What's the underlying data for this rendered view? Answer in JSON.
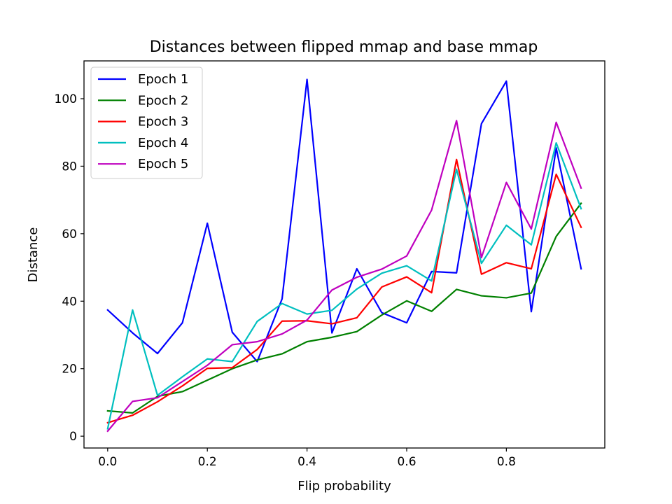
{
  "chart_data": {
    "type": "line",
    "title": "Distances between flipped mmap and base mmap",
    "xlabel": "Flip probability",
    "ylabel": "Distance",
    "xlim": [
      -0.0475,
      0.9975
    ],
    "ylim": [
      -3.5,
      111.2
    ],
    "x_ticks": [
      0.0,
      0.2,
      0.4,
      0.6,
      0.8
    ],
    "x_tick_labels": [
      "0.0",
      "0.2",
      "0.4",
      "0.6",
      "0.8"
    ],
    "y_ticks": [
      0,
      20,
      40,
      60,
      80,
      100
    ],
    "y_tick_labels": [
      "0",
      "20",
      "40",
      "60",
      "80",
      "100"
    ],
    "grid": false,
    "legend_position": "top-left",
    "x": [
      0.0,
      0.05,
      0.1,
      0.15,
      0.2,
      0.25,
      0.3,
      0.35,
      0.4,
      0.45,
      0.5,
      0.55,
      0.6,
      0.65,
      0.7,
      0.75,
      0.8,
      0.85,
      0.9,
      0.95
    ],
    "series": [
      {
        "name": "Epoch 1",
        "color": "#0000ff",
        "values": [
          37.4,
          30.6,
          24.5,
          33.6,
          63.1,
          30.8,
          22.1,
          40.7,
          105.7,
          30.6,
          49.6,
          36.6,
          33.6,
          48.8,
          48.4,
          92.6,
          105.2,
          36.9,
          85.4,
          49.6
        ]
      },
      {
        "name": "Epoch 2",
        "color": "#008000",
        "values": [
          7.5,
          6.9,
          11.8,
          13.2,
          16.6,
          20.0,
          22.6,
          24.4,
          28.0,
          29.3,
          31.0,
          35.9,
          40.1,
          37.0,
          43.5,
          41.6,
          41.0,
          42.4,
          59.2,
          69.0
        ]
      },
      {
        "name": "Epoch 3",
        "color": "#ff0000",
        "values": [
          4.0,
          6.2,
          10.2,
          14.9,
          20.1,
          20.3,
          25.7,
          34.1,
          34.2,
          33.3,
          35.1,
          44.2,
          47.2,
          42.5,
          82.0,
          48.0,
          51.4,
          49.6,
          77.6,
          61.9
        ]
      },
      {
        "name": "Epoch 4",
        "color": "#00bfbf",
        "values": [
          2.2,
          37.4,
          12.1,
          17.6,
          22.9,
          22.1,
          34.0,
          39.3,
          36.2,
          37.3,
          43.6,
          48.3,
          50.5,
          46.0,
          79.1,
          51.2,
          62.5,
          56.7,
          86.9,
          67.4
        ]
      },
      {
        "name": "Epoch 5",
        "color": "#bf00bf",
        "values": [
          1.5,
          10.3,
          11.4,
          16.2,
          21.0,
          27.1,
          28.0,
          30.3,
          34.4,
          43.3,
          47.1,
          49.5,
          53.4,
          67.0,
          93.5,
          52.9,
          75.2,
          61.4,
          93.0,
          73.5
        ]
      }
    ]
  }
}
